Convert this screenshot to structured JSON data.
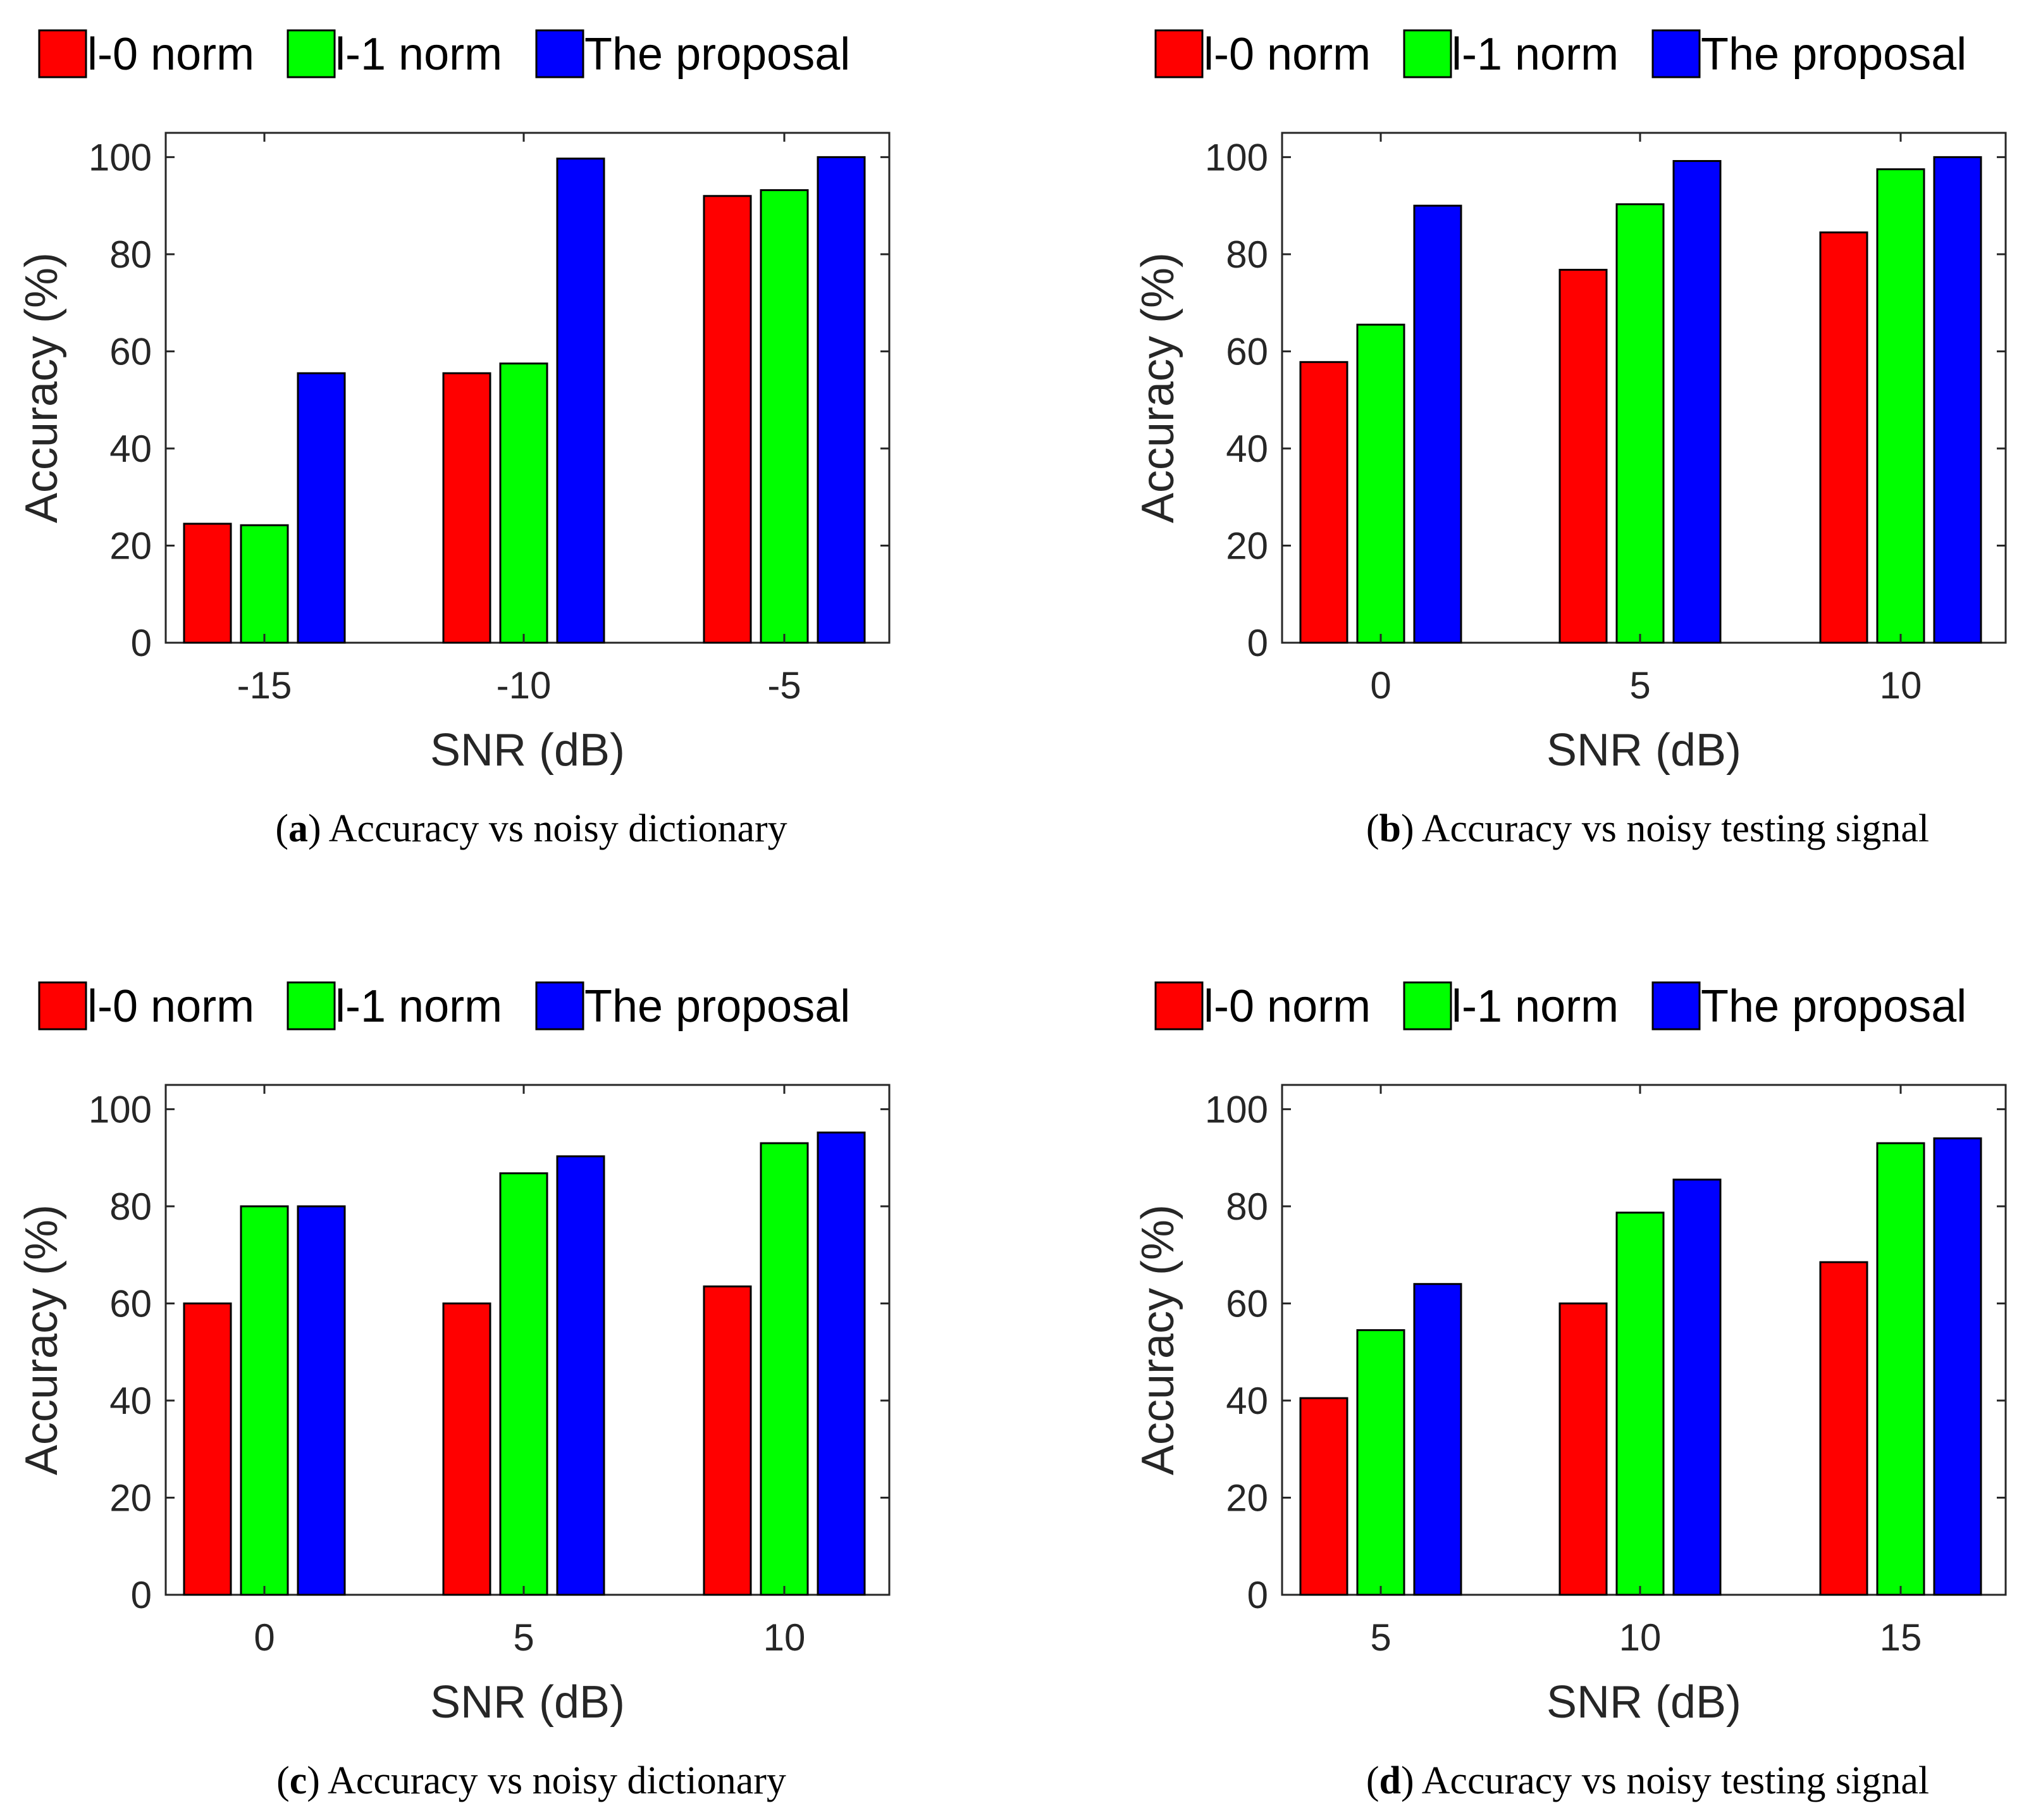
{
  "figure": {
    "legend": [
      "l-0 norm",
      "l-1 norm",
      "The proposal"
    ],
    "series_colors": [
      "#ff0000",
      "#00ff00",
      "#0000ff"
    ]
  },
  "chart_data": [
    {
      "type": "bar",
      "panel": "a",
      "caption_letter": "a",
      "caption_text": "Accuracy vs noisy dictionary",
      "categories": [
        "-15",
        "-10",
        "-5"
      ],
      "series": [
        {
          "name": "l-0 norm",
          "values": [
            24.5,
            55.5,
            92
          ]
        },
        {
          "name": "l-1 norm",
          "values": [
            24.2,
            57.5,
            93.2
          ]
        },
        {
          "name": "The proposal",
          "values": [
            55.5,
            99.7,
            100
          ]
        }
      ],
      "xlabel": "SNR (dB)",
      "ylabel": "Accuracy (%)",
      "ylim": [
        0,
        105
      ],
      "yticks": [
        0,
        20,
        40,
        60,
        80,
        100
      ],
      "legend_position": "top"
    },
    {
      "type": "bar",
      "panel": "b",
      "caption_letter": "b",
      "caption_text": "Accuracy vs noisy testing signal",
      "categories": [
        "0",
        "5",
        "10"
      ],
      "series": [
        {
          "name": "l-0 norm",
          "values": [
            57.8,
            76.8,
            84.5
          ]
        },
        {
          "name": "l-1 norm",
          "values": [
            65.5,
            90.3,
            97.5
          ]
        },
        {
          "name": "The proposal",
          "values": [
            90,
            99.2,
            100
          ]
        }
      ],
      "xlabel": "SNR (dB)",
      "ylabel": "Accuracy (%)",
      "ylim": [
        0,
        105
      ],
      "yticks": [
        0,
        20,
        40,
        60,
        80,
        100
      ],
      "legend_position": "top"
    },
    {
      "type": "bar",
      "panel": "c",
      "caption_letter": "c",
      "caption_text": "Accuracy vs noisy dictionary",
      "categories": [
        "0",
        "5",
        "10"
      ],
      "series": [
        {
          "name": "l-0 norm",
          "values": [
            60,
            60,
            63.5
          ]
        },
        {
          "name": "l-1 norm",
          "values": [
            80,
            86.8,
            93
          ]
        },
        {
          "name": "The proposal",
          "values": [
            80,
            90.3,
            95.2
          ]
        }
      ],
      "xlabel": "SNR (dB)",
      "ylabel": "Accuracy (%)",
      "ylim": [
        0,
        105
      ],
      "yticks": [
        0,
        20,
        40,
        60,
        80,
        100
      ],
      "legend_position": "top"
    },
    {
      "type": "bar",
      "panel": "d",
      "caption_letter": "d",
      "caption_text": "Accuracy vs noisy testing signal",
      "categories": [
        "5",
        "10",
        "15"
      ],
      "series": [
        {
          "name": "l-0 norm",
          "values": [
            40.5,
            60,
            68.5
          ]
        },
        {
          "name": "l-1 norm",
          "values": [
            54.5,
            78.7,
            93
          ]
        },
        {
          "name": "The proposal",
          "values": [
            64,
            85.5,
            94
          ]
        }
      ],
      "xlabel": "SNR (dB)",
      "ylabel": "Accuracy (%)",
      "ylim": [
        0,
        105
      ],
      "yticks": [
        0,
        20,
        40,
        60,
        80,
        100
      ],
      "legend_position": "top"
    }
  ]
}
